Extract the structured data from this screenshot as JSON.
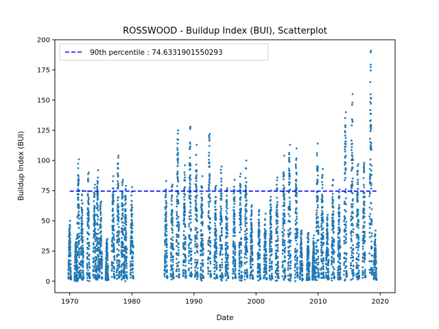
{
  "chart_data": {
    "type": "scatter",
    "title": "ROSSWOOD - Buildup Index (BUI), Scatterplot",
    "xlabel": "Date",
    "ylabel": "Buildup Index (BUI)",
    "xlim": [
      1967.6,
      2022.4
    ],
    "ylim": [
      -9.5,
      200
    ],
    "x_ticks": [
      1970,
      1980,
      1990,
      2000,
      2010,
      2020
    ],
    "y_ticks": [
      0,
      25,
      50,
      75,
      100,
      125,
      150,
      175,
      200
    ],
    "grid": false,
    "legend_position": "top-left",
    "reference_line": {
      "label": "90th percentile : 74.6331901550293",
      "value": 74.6331901550293,
      "x_range": [
        1970,
        2019.5
      ],
      "style": "dashed",
      "color": "#0000ff"
    },
    "series": [
      {
        "name": "",
        "color": "#1f77b4",
        "seasons": [
          [
            1970,
            50
          ],
          [
            1971,
            35
          ],
          [
            1971.4,
            101
          ],
          [
            1972,
            75
          ],
          [
            1973,
            90
          ],
          [
            1974,
            80
          ],
          [
            1974.5,
            92
          ],
          [
            1975,
            66
          ],
          [
            1976,
            35
          ],
          [
            1977,
            87
          ],
          [
            1977.8,
            104
          ],
          [
            1978.5,
            84
          ],
          [
            1979,
            79
          ],
          [
            1980,
            78
          ],
          [
            1985.5,
            83
          ],
          [
            1986.5,
            80
          ],
          [
            1987.4,
            125
          ],
          [
            1988.5,
            96
          ],
          [
            1989.4,
            128
          ],
          [
            1990.4,
            113
          ],
          [
            1991.3,
            87
          ],
          [
            1992.5,
            122
          ],
          [
            1993.5,
            79
          ],
          [
            1994.4,
            95
          ],
          [
            1995.3,
            77
          ],
          [
            1996.5,
            84
          ],
          [
            1997.5,
            89
          ],
          [
            1998.4,
            100
          ],
          [
            1999.3,
            63
          ],
          [
            2000.5,
            59
          ],
          [
            2001.5,
            56
          ],
          [
            2002.4,
            75
          ],
          [
            2003.4,
            86
          ],
          [
            2004.5,
            104
          ],
          [
            2005.4,
            113
          ],
          [
            2006.5,
            110
          ],
          [
            2007.3,
            42
          ],
          [
            2008.4,
            40
          ],
          [
            2009.3,
            38
          ],
          [
            2009.9,
            114
          ],
          [
            2010.7,
            93
          ],
          [
            2011.5,
            55
          ],
          [
            2012.4,
            84
          ],
          [
            2013.4,
            76
          ],
          [
            2014.4,
            140
          ],
          [
            2015.5,
            155
          ],
          [
            2016.4,
            97
          ],
          [
            2017.4,
            98
          ],
          [
            2018.5,
            191
          ],
          [
            2019.2,
            42
          ]
        ]
      }
    ]
  }
}
